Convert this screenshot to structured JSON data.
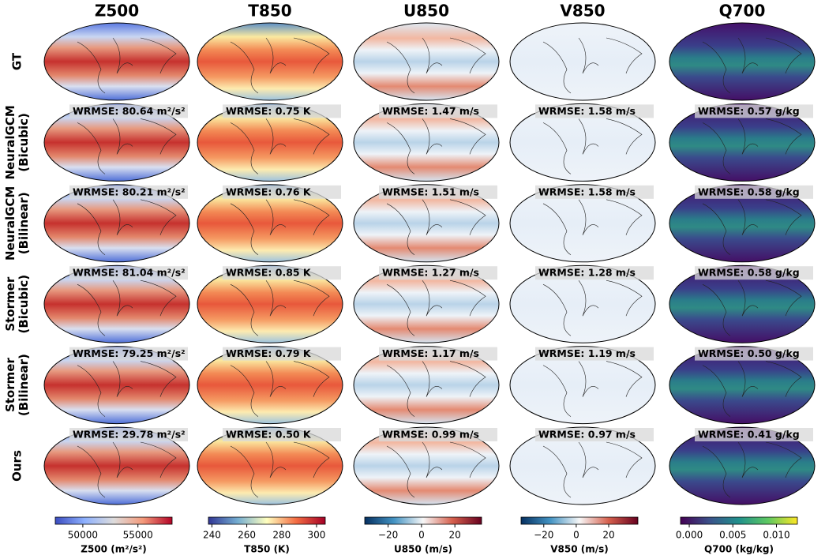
{
  "columns": [
    "Z500",
    "T850",
    "U850",
    "V850",
    "Q700"
  ],
  "rows": [
    {
      "label": [
        "GT"
      ]
    },
    {
      "label": [
        "NeuralGCM",
        "(Bicubic)"
      ],
      "wrmse": [
        "WRMSE: 80.64 m²/s²",
        "WRMSE: 0.75 K",
        "WRMSE: 1.47 m/s",
        "WRMSE: 1.58 m/s",
        "WRMSE: 0.57 g/kg"
      ]
    },
    {
      "label": [
        "NeuralGCM",
        "(Bilinear)"
      ],
      "wrmse": [
        "WRMSE: 80.21 m²/s²",
        "WRMSE: 0.76 K",
        "WRMSE: 1.51 m/s",
        "WRMSE: 1.58 m/s",
        "WRMSE: 0.58 g/kg"
      ]
    },
    {
      "label": [
        "Stormer",
        "(Bicubic)"
      ],
      "wrmse": [
        "WRMSE: 81.04 m²/s²",
        "WRMSE: 0.85 K",
        "WRMSE: 1.27 m/s",
        "WRMSE: 1.28 m/s",
        "WRMSE: 0.58 g/kg"
      ]
    },
    {
      "label": [
        "Stormer",
        "(Bilinear)"
      ],
      "wrmse": [
        "WRMSE: 79.25 m²/s²",
        "WRMSE: 0.79 K",
        "WRMSE: 1.17 m/s",
        "WRMSE: 1.19 m/s",
        "WRMSE: 0.50 g/kg"
      ]
    },
    {
      "label": [
        "Ours"
      ],
      "wrmse": [
        "WRMSE: 29.78 m²/s²",
        "WRMSE: 0.50 K",
        "WRMSE: 0.99 m/s",
        "WRMSE: 0.97 m/s",
        "WRMSE: 0.41 g/kg"
      ]
    }
  ],
  "colorbars": [
    {
      "label": "Z500 (m²/s²)",
      "lim": [
        47500,
        58100
      ],
      "ticks": [
        50000,
        55000
      ],
      "colors": [
        "#3b4cc0",
        "#8db0fe",
        "#dddcdc",
        "#f49a7b",
        "#b40426"
      ]
    },
    {
      "label": "T850 (K)",
      "lim": [
        238,
        305
      ],
      "ticks": [
        240,
        260,
        280,
        300
      ],
      "colors": [
        "#313695",
        "#74add1",
        "#ffffbf",
        "#f46d43",
        "#a50026"
      ]
    },
    {
      "label": "U850 (m/s)",
      "lim": [
        -34,
        36
      ],
      "ticks": [
        {
          "value": -20,
          "label": "−20"
        },
        0,
        20
      ],
      "colors": [
        "#053061",
        "#4393c3",
        "#f7f7f7",
        "#d6604d",
        "#67001f"
      ]
    },
    {
      "label": "V850 (m/s)",
      "lim": [
        -34,
        38
      ],
      "ticks": [
        {
          "value": -20,
          "label": "−20"
        },
        0,
        20
      ],
      "colors": [
        "#053061",
        "#4393c3",
        "#f7f7f7",
        "#d6604d",
        "#67001f"
      ]
    },
    {
      "label": "Q700 (kg/kg)",
      "lim": [
        -0.001,
        0.0124
      ],
      "ticks": [
        {
          "value": 0,
          "label": "0.000"
        },
        {
          "value": 0.005,
          "label": "0.005"
        },
        {
          "value": 0.01,
          "label": "0.010"
        }
      ],
      "colors": [
        "#440154",
        "#3b528b",
        "#21918c",
        "#5ec962",
        "#fde725"
      ]
    }
  ]
}
